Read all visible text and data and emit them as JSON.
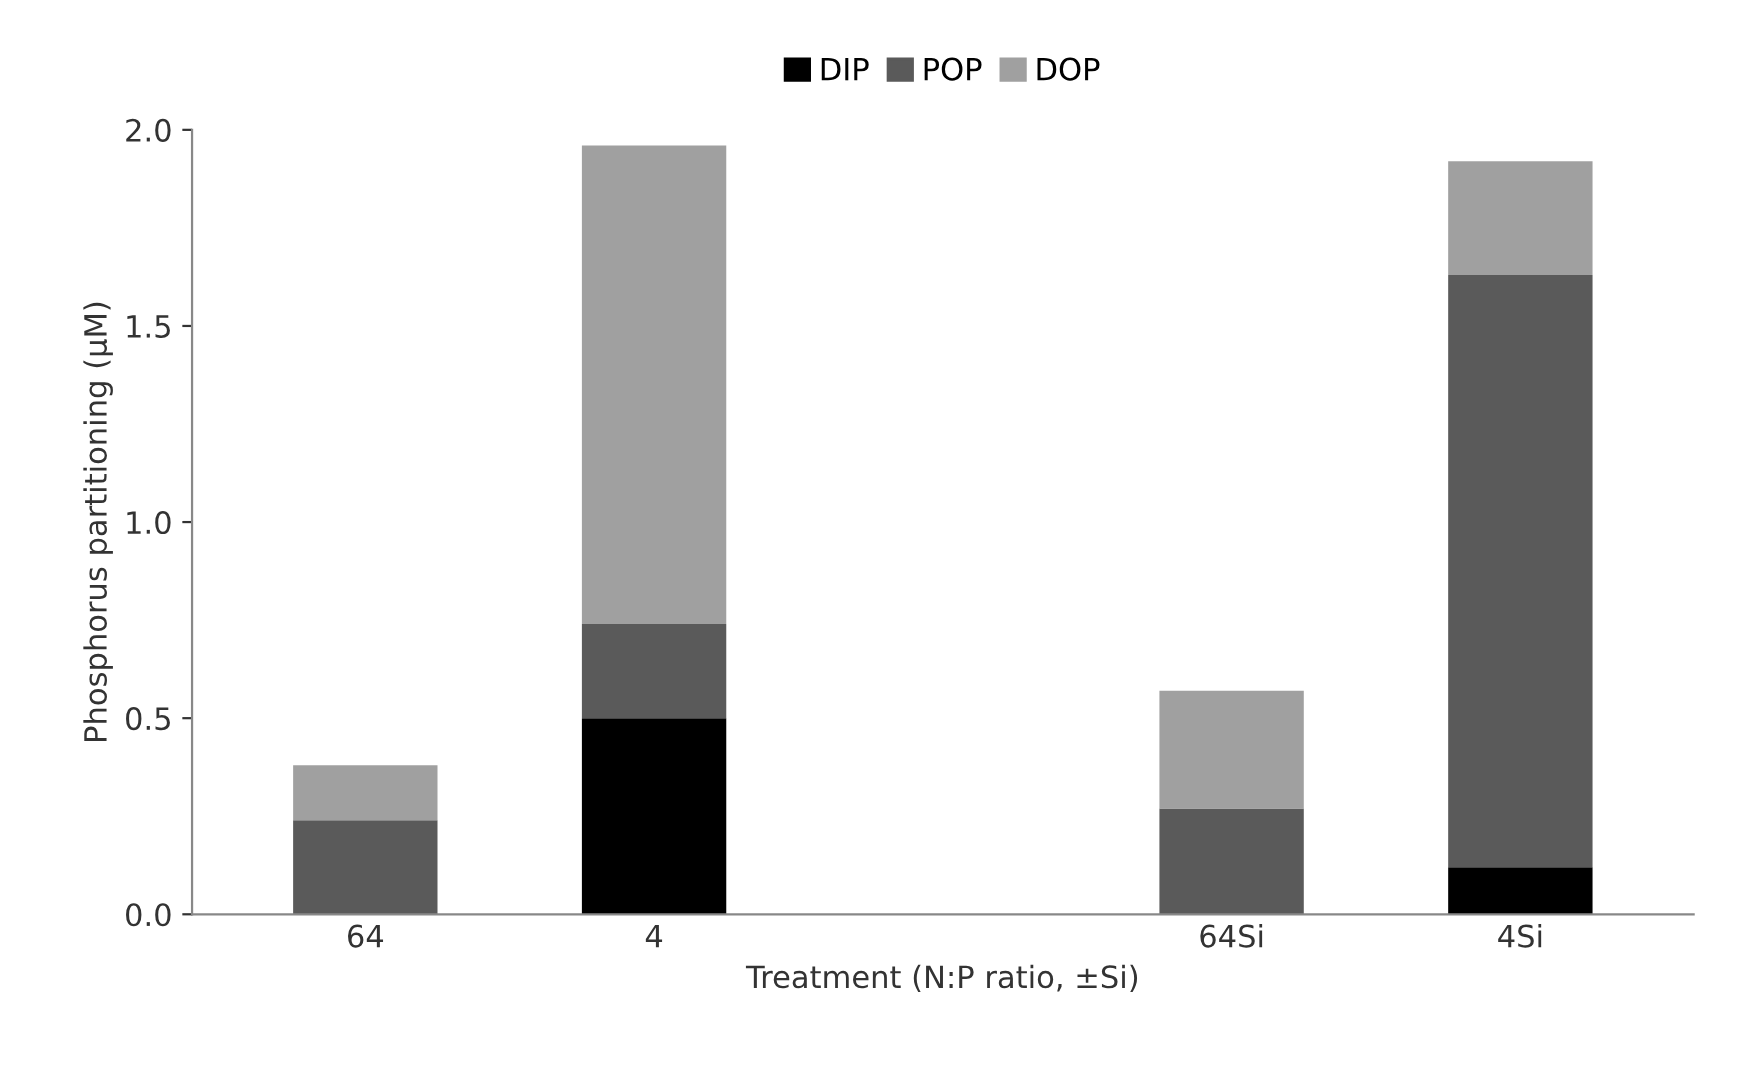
{
  "chart_data": {
    "type": "bar",
    "stacked": true,
    "xlabel": "Treatment (N:P ratio, ±Si)",
    "ylabel": "Phosphorus partitioning (µM)",
    "categories": [
      "64",
      "4",
      null,
      "64Si",
      "4Si"
    ],
    "series": [
      {
        "name": "DIP",
        "color": "#000000",
        "values": [
          0,
          0.5,
          null,
          0,
          0.12
        ]
      },
      {
        "name": "POP",
        "color": "#5a5a5a",
        "values": [
          0.24,
          0.24,
          null,
          0.27,
          1.51
        ]
      },
      {
        "name": "DOP",
        "color": "#a0a0a0",
        "values": [
          0.14,
          1.22,
          null,
          0.3,
          0.29
        ]
      }
    ],
    "ylim": [
      0,
      2.0
    ],
    "yticks": [
      {
        "value": 0,
        "label": "0.0"
      },
      0.5,
      {
        "value": 1,
        "label": "1.0"
      },
      1.5,
      {
        "value": 2,
        "label": "2.0"
      }
    ],
    "legend": "top",
    "grid": false
  }
}
